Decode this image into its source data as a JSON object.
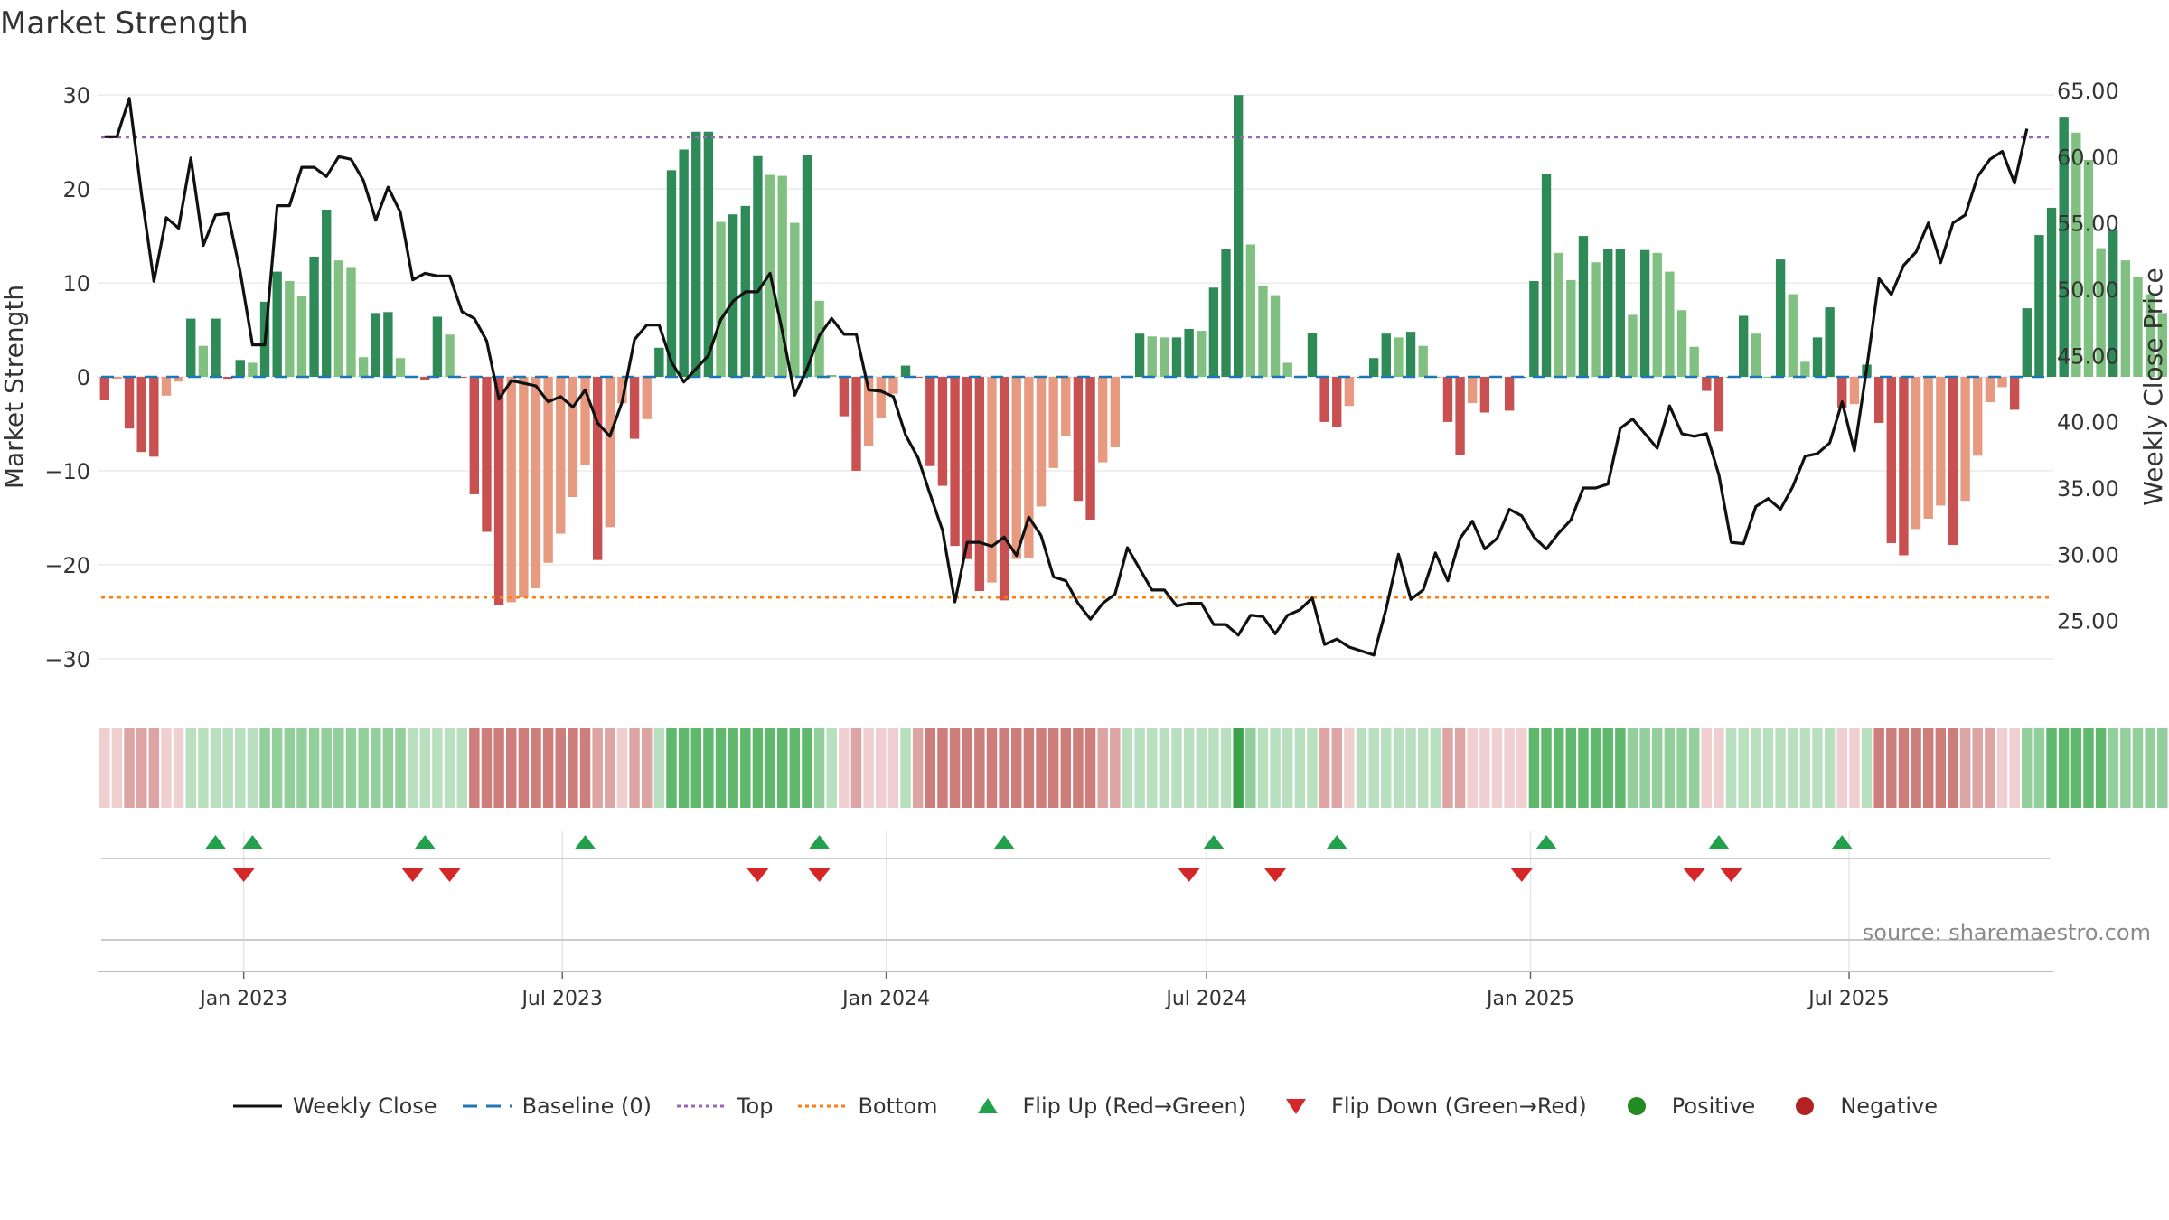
{
  "title": "Market Strength",
  "source_text": "source: sharemaestro.com",
  "colors": {
    "dark_green": "#2e8b57",
    "light_green": "#80c080",
    "dark_red": "#c85050",
    "light_red": "#e79a7f",
    "close_line": "#111111",
    "baseline": "#1f77b4",
    "top": "#9467bd",
    "bottom": "#ff7f0e",
    "flip_up": "#22a04b",
    "flip_down": "#d62728",
    "positive": "#228b22",
    "negative": "#b22222"
  },
  "legend": [
    {
      "key": "weekly_close",
      "label": "Weekly Close"
    },
    {
      "key": "baseline",
      "label": "Baseline (0)"
    },
    {
      "key": "top",
      "label": "Top"
    },
    {
      "key": "bottom",
      "label": "Bottom"
    },
    {
      "key": "flip_up",
      "label": "Flip Up (Red→Green)"
    },
    {
      "key": "flip_down",
      "label": "Flip Down (Green→Red)"
    },
    {
      "key": "positive",
      "label": "Positive"
    },
    {
      "key": "negative",
      "label": "Negative"
    }
  ],
  "chart_data": {
    "type": "bar+line",
    "title": "Market Strength",
    "ylabel": "Market Strength",
    "y2label": "Weekly Close Price",
    "ylim": [
      -33,
      30.5
    ],
    "y2lim": [
      20.0,
      65.0
    ],
    "yticks": [
      30,
      20,
      10,
      0,
      -10,
      -20,
      -30
    ],
    "yticks_labels": [
      "30",
      "20",
      "10",
      "0",
      "−10",
      "−20",
      "−30"
    ],
    "y2ticks": [
      65,
      60,
      55,
      50,
      45,
      40,
      35,
      30,
      25
    ],
    "y2ticks_labels": [
      "65.00",
      "60.00",
      "55.00",
      "50.00",
      "45.00",
      "40.00",
      "35.00",
      "30.00",
      "25.00"
    ],
    "x_start": "2022-10-14",
    "x_step_days": 7,
    "xlim": [
      "2022-10-10",
      "2025-10-25"
    ],
    "xticks": [
      {
        "date": "2023-01-01",
        "label": "Jan 2023"
      },
      {
        "date": "2023-07-01",
        "label": "Jul 2023"
      },
      {
        "date": "2024-01-01",
        "label": "Jan 2024"
      },
      {
        "date": "2024-07-01",
        "label": "Jul 2024"
      },
      {
        "date": "2025-01-01",
        "label": "Jan 2025"
      },
      {
        "date": "2025-07-01",
        "label": "Jul 2025"
      }
    ],
    "top_line": 25.5,
    "bottom_line": -23.5,
    "baseline": 0,
    "strength": [
      -2.5,
      -0.2,
      -5.5,
      -8,
      -8.5,
      -2,
      -0.5,
      6.2,
      3.3,
      6.2,
      -0.2,
      1.8,
      1.5,
      8,
      11.2,
      10.2,
      8.6,
      12.8,
      17.8,
      12.4,
      11.6,
      2.1,
      6.8,
      6.9,
      2,
      -0.1,
      -0.3,
      6.4,
      4.5,
      -0.1,
      -12.5,
      -16.5,
      -24.3,
      -24,
      -23.5,
      -22.5,
      -19.8,
      -16.7,
      -12.8,
      -9.4,
      -19.5,
      -16,
      -2.8,
      -6.6,
      -4.5,
      3.1,
      22,
      24.2,
      26.1,
      26.1,
      16.5,
      17.3,
      18.2,
      23.5,
      21.5,
      21.4,
      16.4,
      23.6,
      8.1,
      0.2,
      -4.2,
      -10,
      -7.4,
      -4.4,
      -1.8,
      1.2,
      -0.1,
      -9.5,
      -11.6,
      -18,
      -19.4,
      -22.8,
      -21.9,
      -23.8,
      -19.4,
      -19.3,
      -13.8,
      -9.7,
      -6.3,
      -13.2,
      -15.2,
      -9.1,
      -7.5,
      0.1,
      4.6,
      4.3,
      4.2,
      4.2,
      5.1,
      4.9,
      9.5,
      13.6,
      30,
      14.1,
      9.7,
      8.7,
      1.5,
      0,
      4.7,
      -4.8,
      -5.3,
      -3.1,
      0,
      2,
      4.6,
      4.2,
      4.8,
      3.3,
      0,
      -4.8,
      -8.3,
      -2.8,
      -3.8,
      0,
      -3.6,
      0,
      10.2,
      21.6,
      13.2,
      10.3,
      15,
      12.2,
      13.6,
      13.6,
      6.6,
      13.5,
      13.2,
      11.2,
      7.1,
      3.2,
      -1.5,
      -5.8,
      0,
      6.5,
      4.6,
      0,
      12.5,
      8.8,
      1.6,
      4.2,
      7.4,
      -3.3,
      -2.9,
      1.3,
      -4.9,
      -17.7,
      -19,
      -16.2,
      -15.1,
      -13.7,
      -17.9,
      -13.2,
      -8.4,
      -2.7,
      -1.1,
      -3.5,
      7.3,
      15.1,
      18,
      27.6,
      26,
      23.1,
      13.7,
      15.7,
      12.4,
      10.6,
      8.8,
      6.8,
      10.5
    ],
    "weekly_close": [
      61.5,
      61.5,
      64.4,
      57.1,
      50.6,
      55.4,
      54.6,
      59.9,
      53.3,
      55.6,
      55.7,
      51.3,
      45.8,
      45.8,
      56.3,
      56.3,
      59.2,
      59.2,
      58.5,
      60,
      59.8,
      58.2,
      55.2,
      57.7,
      55.8,
      50.7,
      51.2,
      51,
      51,
      48.3,
      47.8,
      46.1,
      41.7,
      43.1,
      42.9,
      42.7,
      41.5,
      41.9,
      41.1,
      42.4,
      39.9,
      38.9,
      41.5,
      46.2,
      47.3,
      47.3,
      44.5,
      43,
      44,
      45,
      47.7,
      49.1,
      49.8,
      49.8,
      51.2,
      46.8,
      42,
      44,
      46.5,
      47.8,
      46.6,
      46.6,
      42.4,
      42.3,
      41.9,
      39,
      37.3,
      34.5,
      31.8,
      26.4,
      30.9,
      30.9,
      30.6,
      31.3,
      29.9,
      32.8,
      31.4,
      28.3,
      28,
      26.3,
      25.1,
      26.3,
      27,
      30.5,
      28.9,
      27.3,
      27.3,
      26.1,
      26.3,
      26.3,
      24.7,
      24.7,
      23.9,
      25.4,
      25.3,
      24,
      25.4,
      25.8,
      26.7,
      23.2,
      23.6,
      23,
      22.7,
      22.4,
      25.9,
      30,
      26.6,
      27.3,
      30.1,
      28,
      31.2,
      32.5,
      30.4,
      31.2,
      33.4,
      32.9,
      31.3,
      30.4,
      31.6,
      32.6,
      35,
      35,
      35.3,
      39.5,
      40.2,
      39.1,
      38,
      41.2,
      39.1,
      38.9,
      39.1,
      36,
      30.9,
      30.8,
      33.6,
      34.2,
      33.4,
      35.1,
      37.4,
      37.6,
      38.4,
      41.5,
      37.8,
      44,
      50.8,
      49.6,
      51.8,
      52.8,
      55,
      52,
      55,
      55.6,
      58.5,
      59.8,
      60.4,
      58,
      62.1
    ],
    "heat_levels": [
      -1,
      -1,
      -2,
      -2,
      -2,
      -1,
      -1,
      1,
      1,
      1,
      1,
      1,
      1,
      2,
      2,
      2,
      2,
      2,
      2,
      2,
      2,
      2,
      2,
      2,
      2,
      1,
      1,
      1,
      1,
      1,
      -3,
      -3,
      -3,
      -3,
      -3,
      -3,
      -3,
      -3,
      -3,
      -3,
      -2,
      -2,
      -1,
      -2,
      -2,
      1,
      3,
      3,
      3,
      3,
      3,
      3,
      3,
      3,
      3,
      3,
      3,
      3,
      2,
      1,
      -1,
      -2,
      -1,
      -1,
      -1,
      1,
      -2,
      -3,
      -3,
      -3,
      -3,
      -3,
      -3,
      -3,
      -3,
      -3,
      -3,
      -3,
      -3,
      -3,
      -3,
      -2,
      -2,
      1,
      1,
      1,
      1,
      1,
      1,
      1,
      1,
      1,
      4,
      2,
      1,
      1,
      1,
      1,
      1,
      -2,
      -2,
      -1,
      1,
      1,
      1,
      1,
      1,
      1,
      1,
      -2,
      -2,
      -1,
      -1,
      -1,
      -1,
      -1,
      3,
      3,
      3,
      3,
      3,
      3,
      3,
      3,
      2,
      2,
      2,
      2,
      2,
      2,
      -1,
      -1,
      1,
      1,
      1,
      1,
      1,
      1,
      1,
      1,
      1,
      -1,
      -1,
      1,
      -3,
      -3,
      -3,
      -3,
      -3,
      -3,
      -3,
      -2,
      -2,
      -2,
      -1,
      -1,
      2,
      2,
      3,
      3,
      3,
      3,
      3,
      2,
      2,
      2,
      2,
      2,
      2
    ],
    "flip_up_dates": [
      "2022-12-16",
      "2023-01-06",
      "2023-04-14",
      "2023-07-14",
      "2023-11-24",
      "2024-03-08",
      "2024-07-05",
      "2024-09-13",
      "2025-01-10",
      "2025-04-18",
      "2025-06-27"
    ],
    "flip_down_dates": [
      "2023-01-01",
      "2023-04-07",
      "2023-04-28",
      "2023-10-20",
      "2023-11-24",
      "2024-06-21",
      "2024-08-09",
      "2024-12-27",
      "2025-04-04",
      "2025-04-25"
    ]
  }
}
